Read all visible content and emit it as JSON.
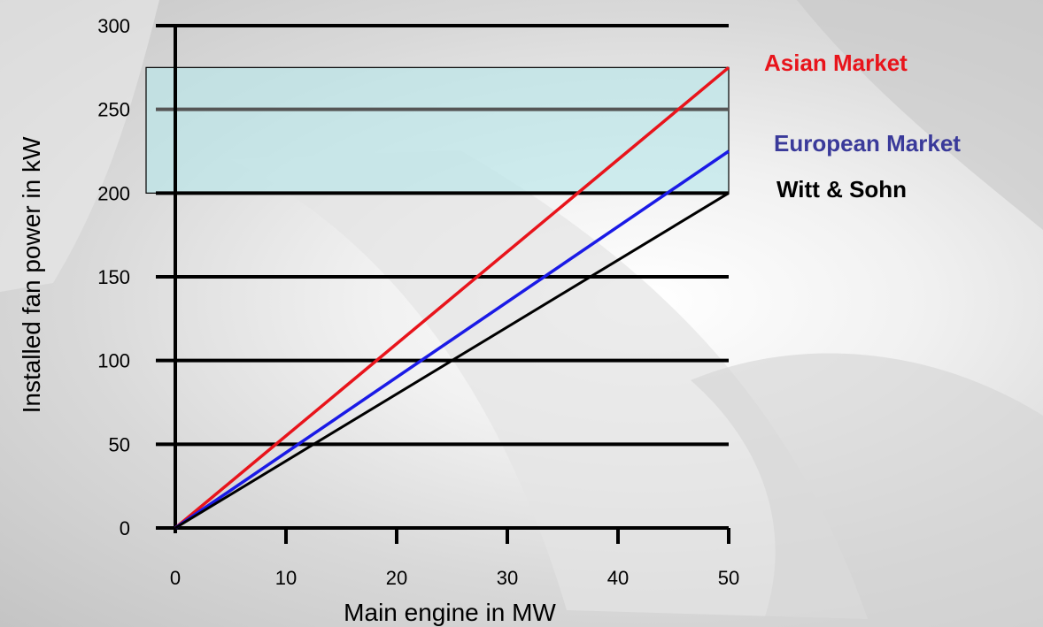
{
  "chart_data": {
    "type": "line",
    "xlabel": "Main engine in MW",
    "ylabel": "Installed fan power in kW",
    "xlim": [
      0,
      50
    ],
    "ylim": [
      0,
      300
    ],
    "x_ticks": [
      "0",
      "10",
      "20",
      "30",
      "40",
      "50"
    ],
    "y_ticks": [
      "0",
      "50",
      "100",
      "150",
      "200",
      "250",
      "300"
    ],
    "grid": "horizontal",
    "highlight_band": [
      200,
      275
    ],
    "legend_placement": "right",
    "series": [
      {
        "name": "Asian Market",
        "color": "#e8141b",
        "x": [
          0,
          50
        ],
        "y": [
          0,
          275
        ]
      },
      {
        "name": "European Market",
        "color": "#1a1ae6",
        "x": [
          0,
          50
        ],
        "y": [
          0,
          225
        ]
      },
      {
        "name": "Witt & Sohn",
        "color": "#000000",
        "x": [
          0,
          50
        ],
        "y": [
          0,
          200
        ]
      }
    ],
    "legend_colors": [
      "#e8141b",
      "#3a3a9a",
      "#000000"
    ]
  }
}
